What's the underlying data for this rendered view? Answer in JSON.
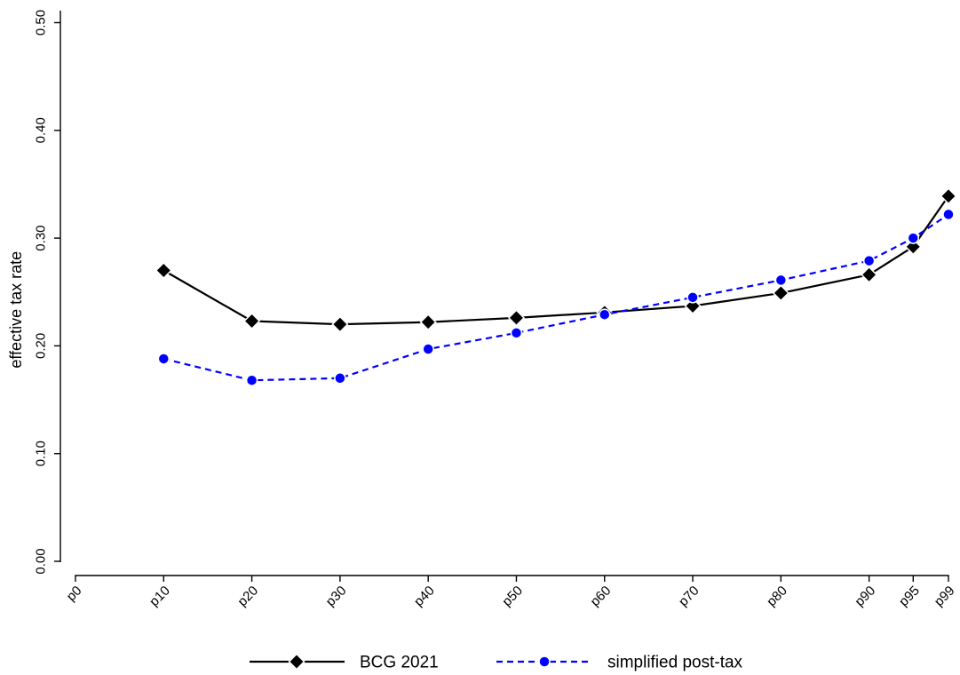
{
  "chart_data": {
    "type": "line",
    "ylabel": "effective tax rate",
    "xlabel": "",
    "x_tick_labels": [
      "p0",
      "p10",
      "p20",
      "p30",
      "p40",
      "p50",
      "p60",
      "p70",
      "p80",
      "p90",
      "p95",
      "p99"
    ],
    "x_tick_positions": [
      0,
      10,
      20,
      30,
      40,
      50,
      60,
      70,
      80,
      90,
      95,
      99
    ],
    "y_tick_labels": [
      "0.00",
      "0.10",
      "0.20",
      "0.30",
      "0.40",
      "0.50"
    ],
    "y_tick_values": [
      0.0,
      0.1,
      0.2,
      0.3,
      0.4,
      0.5
    ],
    "xlim": [
      0,
      99
    ],
    "ylim": [
      0.0,
      0.5
    ],
    "grid": false,
    "legend_position": "bottom",
    "x": [
      10,
      20,
      30,
      40,
      50,
      60,
      70,
      80,
      90,
      95,
      99
    ],
    "series": [
      {
        "name": "BCG 2021",
        "color": "#000000",
        "line_style": "solid",
        "marker": "diamond",
        "values": [
          0.27,
          0.223,
          0.22,
          0.222,
          0.226,
          0.231,
          0.237,
          0.249,
          0.266,
          0.292,
          0.339
        ]
      },
      {
        "name": "simplified post-tax",
        "color": "#0000ff",
        "line_style": "dashed",
        "marker": "circle",
        "values": [
          0.188,
          0.168,
          0.17,
          0.197,
          0.212,
          0.229,
          0.245,
          0.261,
          0.279,
          0.3,
          0.322
        ]
      }
    ]
  }
}
